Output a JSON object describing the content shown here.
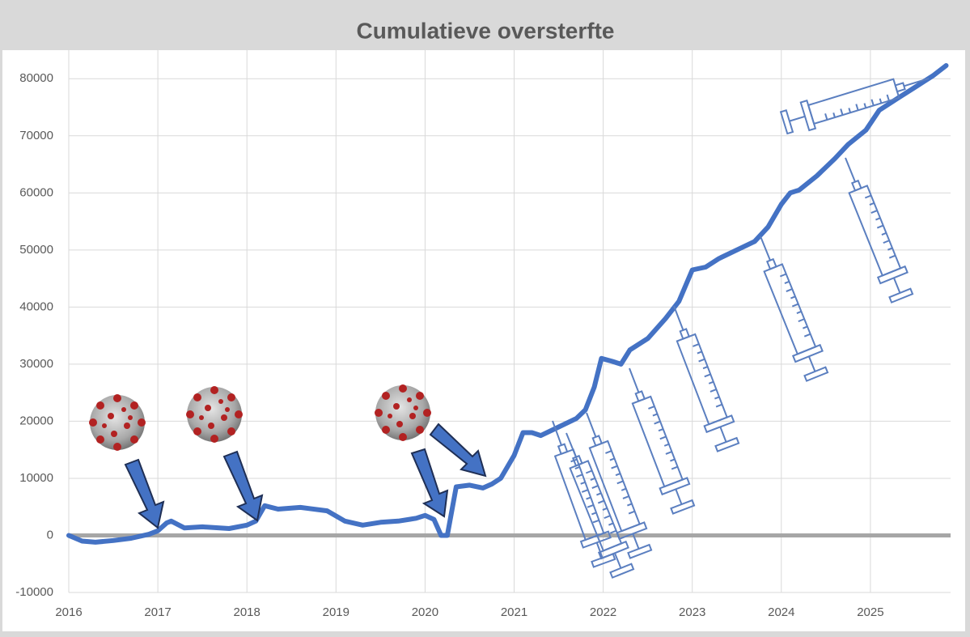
{
  "chart_data": {
    "type": "line",
    "title": "Cumulatieve oversterfte",
    "series": [
      {
        "name": "Cumulatieve oversterfte",
        "color": "#4472c4",
        "x": [
          2016.0,
          2016.15,
          2016.3,
          2016.5,
          2016.7,
          2016.9,
          2017.0,
          2017.1,
          2017.15,
          2017.3,
          2017.5,
          2017.8,
          2018.0,
          2018.1,
          2018.2,
          2018.35,
          2018.6,
          2018.9,
          2019.1,
          2019.3,
          2019.5,
          2019.7,
          2019.9,
          2020.0,
          2020.1,
          2020.18,
          2020.25,
          2020.35,
          2020.5,
          2020.65,
          2020.75,
          2020.85,
          2021.0,
          2021.1,
          2021.2,
          2021.3,
          2021.5,
          2021.7,
          2021.8,
          2021.9,
          2021.98,
          2022.1,
          2022.2,
          2022.3,
          2022.5,
          2022.7,
          2022.85,
          2023.0,
          2023.15,
          2023.3,
          2023.5,
          2023.7,
          2023.85,
          2024.0,
          2024.1,
          2024.2,
          2024.4,
          2024.6,
          2024.75,
          2024.95,
          2025.1,
          2025.3,
          2025.5,
          2025.7,
          2025.85
        ],
        "values": [
          0,
          -1000,
          -1200,
          -900,
          -500,
          200,
          800,
          2200,
          2500,
          1300,
          1500,
          1200,
          1800,
          2500,
          5200,
          4600,
          4900,
          4300,
          2500,
          1800,
          2300,
          2500,
          3000,
          3500,
          2800,
          0,
          0,
          8500,
          8800,
          8300,
          9000,
          10000,
          14000,
          18000,
          18000,
          17500,
          19000,
          20500,
          22000,
          26000,
          31000,
          30500,
          30000,
          32500,
          34500,
          38000,
          41000,
          46500,
          47000,
          48500,
          50000,
          51500,
          54000,
          58000,
          60000,
          60500,
          63000,
          66000,
          68500,
          71000,
          74500,
          76500,
          78500,
          80500,
          82300
        ]
      }
    ],
    "xlim": [
      2016,
      2025.9
    ],
    "xticks": [
      2016,
      2017,
      2018,
      2019,
      2020,
      2021,
      2022,
      2023,
      2024,
      2025
    ],
    "ylim": [
      -10000,
      85000
    ],
    "yticks": [
      -10000,
      0,
      10000,
      20000,
      30000,
      40000,
      50000,
      60000,
      70000,
      80000
    ],
    "grid": true
  }
}
